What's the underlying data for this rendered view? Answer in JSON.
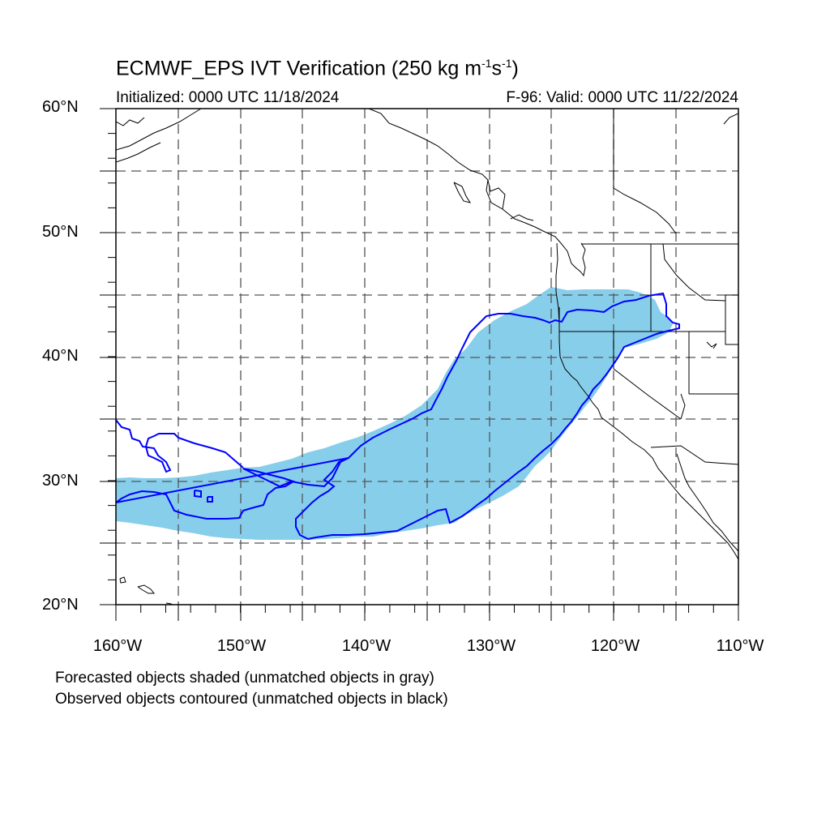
{
  "title": {
    "prefix": "ECMWF_EPS IVT Verification (250 kg m",
    "exp1": "-1",
    "mid": "s",
    "exp2": "-1",
    "suffix": ")"
  },
  "initialized": "Initialized: 0000 UTC 11/18/2024",
  "valid": "F-96: Valid: 0000 UTC 11/22/2024",
  "latitude_labels": [
    "60°N",
    "50°N",
    "40°N",
    "30°N",
    "20°N"
  ],
  "longitude_labels": [
    "160°W",
    "150°W",
    "140°W",
    "130°W",
    "120°W",
    "110°W"
  ],
  "notes": {
    "forecast": "Forecasted objects shaded (unmatched objects in gray)",
    "observed": "Observed objects contoured (unmatched objects in black)"
  },
  "colors": {
    "forecast_shade": "#87ceeb",
    "observed_contour": "#0000ff",
    "coastline": "#000000",
    "grid": "#555555"
  },
  "map_extent": {
    "lon_min": -160,
    "lon_max": -110,
    "lat_min": 20,
    "lat_max": 60
  }
}
